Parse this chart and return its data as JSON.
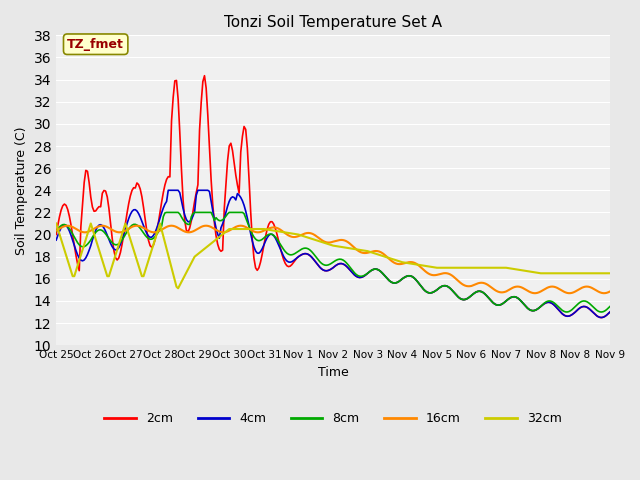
{
  "title": "Tonzi Soil Temperature Set A",
  "xlabel": "Time",
  "ylabel": "Soil Temperature (C)",
  "ylim": [
    10,
    38
  ],
  "yticks": [
    10,
    12,
    14,
    16,
    18,
    20,
    22,
    24,
    26,
    28,
    30,
    32,
    34,
    36,
    38
  ],
  "bg_color": "#e8e8e8",
  "plot_bg": "#f0f0f0",
  "annotation_text": "TZ_fmet",
  "annotation_bg": "#ffffcc",
  "annotation_fg": "#990000",
  "series_colors": {
    "2cm": "#ff0000",
    "4cm": "#0000cc",
    "8cm": "#00aa00",
    "16cm": "#ff8800",
    "32cm": "#cccc00"
  },
  "legend_labels": [
    "2cm",
    "4cm",
    "8cm",
    "16cm",
    "32cm"
  ],
  "xtick_labels": [
    "Oct 25",
    "Oct 26",
    "Oct 27",
    "Oct 28",
    "Oct 29",
    "Oct 30",
    "Oct 31",
    "Nov 1",
    "Nov 2",
    "Nov 3",
    "Nov 4",
    "Nov 5",
    "Nov 6",
    "Nov 7",
    "Nov 8",
    "Nov 8",
    "Nov 9"
  ],
  "days_range": 16
}
